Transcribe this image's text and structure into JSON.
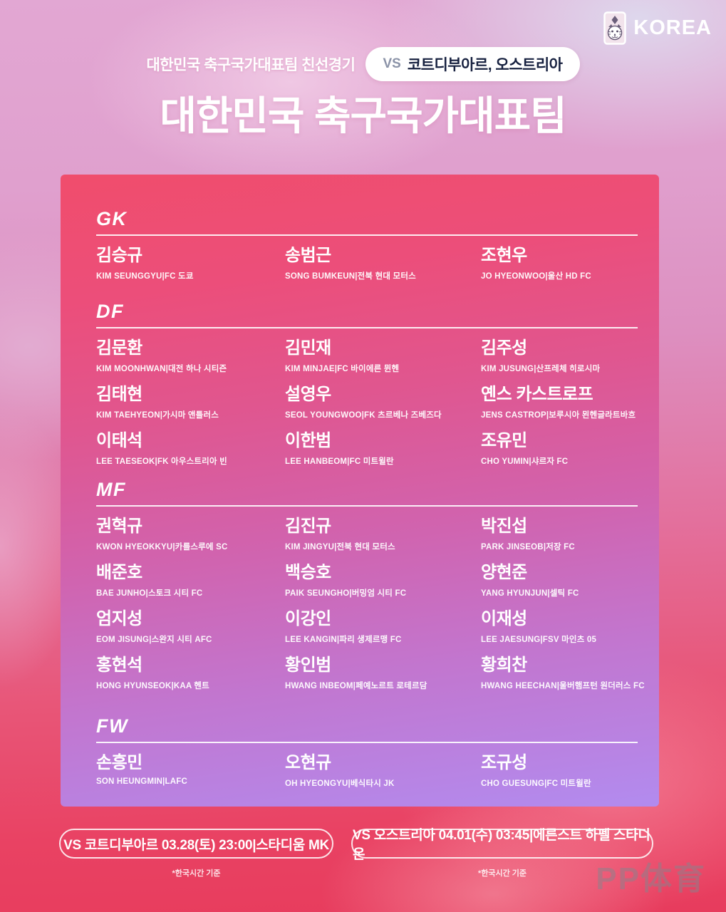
{
  "brand": {
    "name": "KOREA",
    "emblem_icon": "korea-tiger-emblem"
  },
  "header": {
    "subtitle": "대한민국 축구국가대표팀 친선경기",
    "badge_vs": "VS",
    "badge_teams": "코트디부아르, 오스트리아",
    "title": "대한민국 축구국가대표팀"
  },
  "sections": [
    {
      "label": "GK",
      "players": [
        {
          "name": "김승규",
          "detail": "KIM SEUNGGYU|FC 도쿄"
        },
        {
          "name": "송범근",
          "detail": "SONG BUMKEUN|전북 현대 모터스"
        },
        {
          "name": "조현우",
          "detail": "JO HYEONWOO|울산 HD FC"
        }
      ]
    },
    {
      "label": "DF",
      "players": [
        {
          "name": "김문환",
          "detail": "KIM MOONHWAN|대전 하나 시티즌"
        },
        {
          "name": "김민재",
          "detail": "KIM MINJAE|FC 바이에른 뮌헨"
        },
        {
          "name": "김주성",
          "detail": "KIM JUSUNG|산프레체 히로시마"
        },
        {
          "name": "김태현",
          "detail": "KIM TAEHYEON|가시마 앤틀러스"
        },
        {
          "name": "설영우",
          "detail": "SEOL YOUNGWOO|FK 츠르베나 즈베즈다"
        },
        {
          "name": "옌스 카스트로프",
          "detail": "JENS CASTROP|보루시아 묀헨글라트바흐"
        },
        {
          "name": "이태석",
          "detail": "LEE TAESEOK|FK 아우스트리아 빈"
        },
        {
          "name": "이한범",
          "detail": "LEE HANBEOM|FC 미트윌란"
        },
        {
          "name": "조유민",
          "detail": "CHO YUMIN|샤르자 FC"
        }
      ]
    },
    {
      "label": "MF",
      "players": [
        {
          "name": "권혁규",
          "detail": "KWON HYEOKKYU|카를스루에 SC"
        },
        {
          "name": "김진규",
          "detail": "KIM JINGYU|전북 현대 모터스"
        },
        {
          "name": "박진섭",
          "detail": "PARK JINSEOB|저장 FC"
        },
        {
          "name": "배준호",
          "detail": "BAE JUNHO|스토크 시티 FC"
        },
        {
          "name": "백승호",
          "detail": "PAIK SEUNGHO|버밍엄 시티 FC"
        },
        {
          "name": "양현준",
          "detail": "YANG HYUNJUN|셀틱 FC"
        },
        {
          "name": "엄지성",
          "detail": "EOM JISUNG|스완지 시티 AFC"
        },
        {
          "name": "이강인",
          "detail": "LEE KANGIN|파리 생제르맹 FC"
        },
        {
          "name": "이재성",
          "detail": "LEE JAESUNG|FSV 마인츠 05"
        },
        {
          "name": "홍현석",
          "detail": "HONG HYUNSEOK|KAA 헨트"
        },
        {
          "name": "황인범",
          "detail": "HWANG INBEOM|페예노르트 로테르담"
        },
        {
          "name": "황희찬",
          "detail": "HWANG HEECHAN|울버햄프턴 원더러스 FC"
        }
      ]
    },
    {
      "label": "FW",
      "players": [
        {
          "name": "손흥민",
          "detail": "SON HEUNGMIN|LAFC"
        },
        {
          "name": "오현규",
          "detail": "OH HYEONGYU|베식타시 JK"
        },
        {
          "name": "조규성",
          "detail": "CHO GUESUNG|FC 미트윌란"
        }
      ]
    }
  ],
  "schedule": [
    {
      "label": "VS 코트디부아르 03.28(토) 23:00|스타디움 MK",
      "note": "*한국시간 기준"
    },
    {
      "label": "VS 오스트리아 04.01(수) 03:45|에른스트 하펠 스타디온",
      "note": "*한국시간 기준"
    }
  ],
  "watermark": "PP体育",
  "colors": {
    "panel_gradient_top": "#f04d6c",
    "panel_gradient_bottom": "#b28bef",
    "background_bottom": "#e73c5d",
    "badge_background": "#ffffff",
    "badge_vs_text": "#8b93a8",
    "badge_team_text": "#16203f",
    "text_primary": "#ffffff",
    "watermark_gray": "#85858e"
  }
}
